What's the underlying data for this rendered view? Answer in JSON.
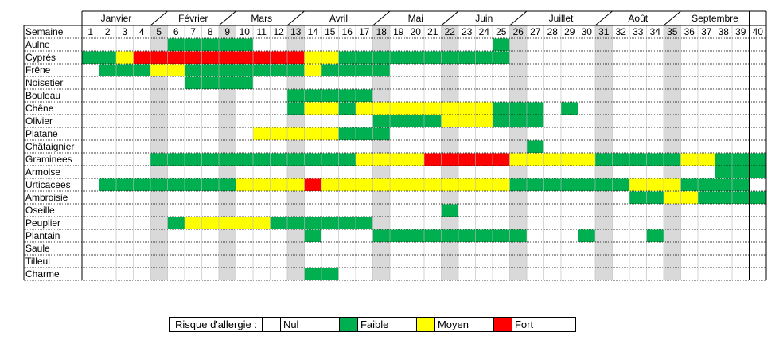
{
  "chart_data": {
    "type": "heatmap",
    "title": "",
    "row_header": "Semaine",
    "weeks": [
      1,
      2,
      3,
      4,
      5,
      6,
      7,
      8,
      9,
      10,
      11,
      12,
      13,
      14,
      15,
      16,
      17,
      18,
      19,
      20,
      21,
      22,
      23,
      24,
      25,
      26,
      27,
      28,
      29,
      30,
      31,
      32,
      33,
      34,
      35,
      36,
      37,
      38,
      39,
      40
    ],
    "months": [
      "Janvier",
      "Février",
      "Mars",
      "Avril",
      "Mai",
      "Juin",
      "Juillet",
      "Août",
      "Septembre"
    ],
    "shaded_weeks": [
      5,
      9,
      13,
      18,
      22,
      26,
      31,
      35
    ],
    "levels": {
      "0": "Nul",
      "1": "Faible",
      "2": "Moyen",
      "3": "Fort"
    },
    "colors": {
      "0": "#ffffff",
      "1": "#00b050",
      "2": "#ffff00",
      "3": "#ff0000",
      "shade": "#d9d9d9"
    },
    "rows": [
      {
        "name": "Aulne",
        "spans": [
          [
            6,
            10,
            1
          ],
          [
            25,
            25,
            1
          ]
        ]
      },
      {
        "name": "Cyprés",
        "spans": [
          [
            1,
            2,
            1
          ],
          [
            3,
            3,
            2
          ],
          [
            4,
            13,
            3
          ],
          [
            14,
            15,
            2
          ],
          [
            16,
            25,
            1
          ]
        ]
      },
      {
        "name": "Frêne",
        "spans": [
          [
            2,
            4,
            1
          ],
          [
            5,
            6,
            2
          ],
          [
            7,
            13,
            1
          ],
          [
            14,
            14,
            2
          ],
          [
            15,
            18,
            1
          ]
        ]
      },
      {
        "name": "Noisetier",
        "spans": [
          [
            7,
            10,
            1
          ]
        ]
      },
      {
        "name": "Bouleau",
        "spans": [
          [
            13,
            17,
            1
          ]
        ]
      },
      {
        "name": "Chêne",
        "spans": [
          [
            13,
            13,
            1
          ],
          [
            14,
            15,
            2
          ],
          [
            16,
            16,
            1
          ],
          [
            17,
            24,
            2
          ],
          [
            25,
            27,
            1
          ],
          [
            29,
            29,
            1
          ]
        ]
      },
      {
        "name": "Olivier",
        "spans": [
          [
            18,
            21,
            1
          ],
          [
            22,
            24,
            2
          ],
          [
            25,
            27,
            1
          ]
        ]
      },
      {
        "name": "Platane",
        "spans": [
          [
            11,
            15,
            2
          ],
          [
            16,
            18,
            1
          ]
        ]
      },
      {
        "name": "Châtaignier",
        "spans": [
          [
            27,
            27,
            1
          ]
        ]
      },
      {
        "name": "Graminees",
        "spans": [
          [
            5,
            16,
            1
          ],
          [
            17,
            20,
            2
          ],
          [
            21,
            25,
            3
          ],
          [
            26,
            30,
            2
          ],
          [
            31,
            35,
            1
          ],
          [
            36,
            37,
            2
          ],
          [
            38,
            40,
            1
          ]
        ]
      },
      {
        "name": "Armoise",
        "spans": [
          [
            38,
            40,
            1
          ]
        ]
      },
      {
        "name": "Urticacees",
        "spans": [
          [
            2,
            9,
            1
          ],
          [
            10,
            13,
            2
          ],
          [
            14,
            14,
            3
          ],
          [
            15,
            25,
            2
          ],
          [
            26,
            32,
            1
          ],
          [
            33,
            35,
            2
          ],
          [
            36,
            39,
            1
          ]
        ]
      },
      {
        "name": "Ambroisie",
        "spans": [
          [
            33,
            34,
            1
          ],
          [
            35,
            36,
            2
          ],
          [
            37,
            40,
            1
          ]
        ]
      },
      {
        "name": "Oseille",
        "spans": [
          [
            22,
            22,
            1
          ]
        ]
      },
      {
        "name": "Peuplier",
        "spans": [
          [
            6,
            6,
            1
          ],
          [
            7,
            11,
            2
          ],
          [
            12,
            17,
            1
          ]
        ]
      },
      {
        "name": "Plantain",
        "spans": [
          [
            14,
            14,
            1
          ],
          [
            18,
            26,
            1
          ],
          [
            30,
            30,
            1
          ],
          [
            34,
            34,
            1
          ]
        ]
      },
      {
        "name": "Saule",
        "spans": []
      },
      {
        "name": "Tilleul",
        "spans": []
      },
      {
        "name": "Charme",
        "spans": [
          [
            14,
            15,
            1
          ]
        ]
      }
    ],
    "legend": {
      "label": "Risque d'allergie :",
      "items": [
        "Nul",
        "Faible",
        "Moyen",
        "Fort"
      ]
    }
  }
}
